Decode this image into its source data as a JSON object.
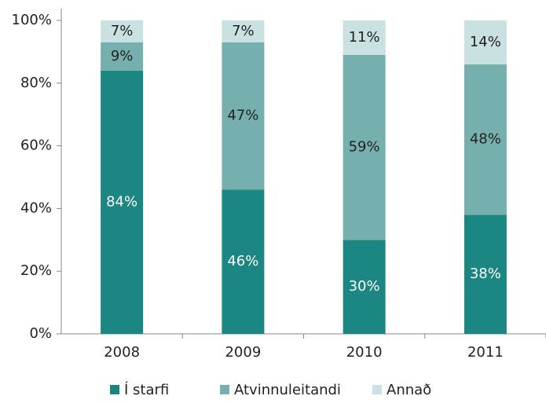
{
  "chart_data": {
    "type": "stacked_bar",
    "categories": [
      "2008",
      "2009",
      "2010",
      "2011"
    ],
    "series": [
      {
        "name": "Í starfi",
        "color": "#1b8682",
        "label_color": "#ffffff",
        "values": [
          84,
          46,
          30,
          38
        ],
        "value_labels": [
          "84%",
          "46%",
          "30%",
          "38%"
        ]
      },
      {
        "name": "Atvinnuleitandi",
        "color": "#76b0ae",
        "label_color": "#222222",
        "values": [
          9,
          47,
          59,
          48
        ],
        "value_labels": [
          "9%",
          "47%",
          "59%",
          "48%"
        ]
      },
      {
        "name": "Annað",
        "color": "#c9e1e0",
        "label_color": "#222222",
        "values": [
          7,
          7,
          11,
          14
        ],
        "value_labels": [
          "7%",
          "7%",
          "11%",
          "14%"
        ]
      }
    ],
    "ylim": [
      0,
      100
    ],
    "yticks": [
      {
        "value": 0,
        "label": "0%"
      },
      {
        "value": 20,
        "label": "20%"
      },
      {
        "value": 40,
        "label": "40%"
      },
      {
        "value": 60,
        "label": "60%"
      },
      {
        "value": 80,
        "label": "80%"
      },
      {
        "value": 100,
        "label": "100%"
      }
    ],
    "legend": "bottom"
  }
}
